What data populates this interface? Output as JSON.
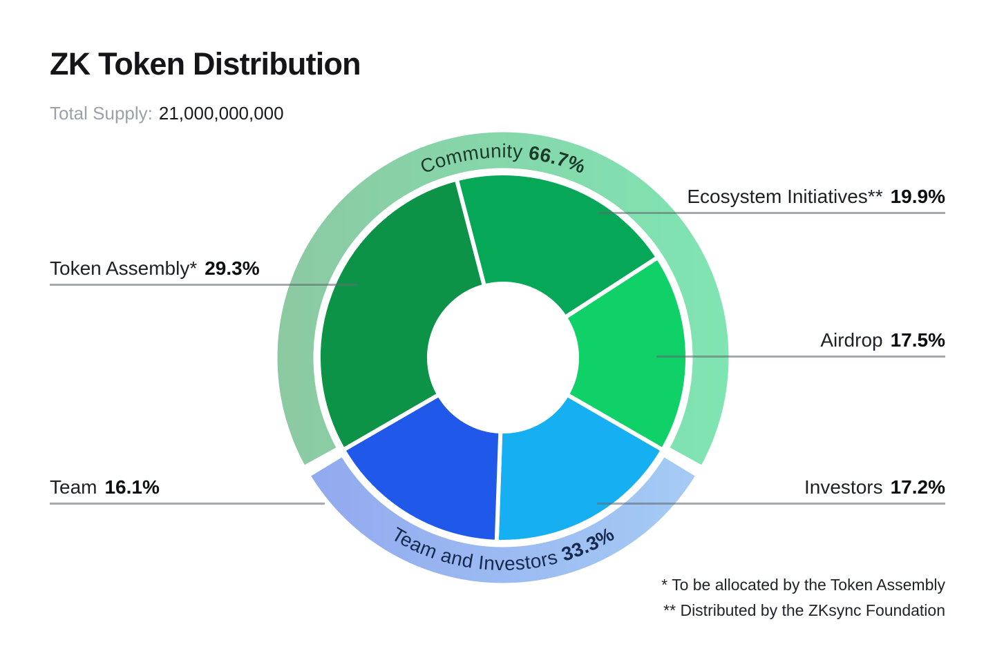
{
  "header": {
    "title": "ZK Token Distribution",
    "total_supply_label": "Total Supply:",
    "total_supply_value": "21,000,000,000"
  },
  "chart_data": {
    "type": "pie",
    "variant": "nested-donut",
    "title": "ZK Token Distribution",
    "total_supply": "21,000,000,000",
    "units": "%",
    "layout_hint": "outer category ring centered on 12 o'clock, inner segments clockwise from outer-ring boundary",
    "inner_segments": [
      {
        "label": "Token Assembly*",
        "value": 29.3,
        "color": "#0d9348"
      },
      {
        "label": "Ecosystem Initiatives**",
        "value": 19.9,
        "color": "#06a757"
      },
      {
        "label": "Airdrop",
        "value": 17.5,
        "color": "#0fd167"
      },
      {
        "label": "Investors",
        "value": 17.2,
        "color": "#16b0f2"
      },
      {
        "label": "Team",
        "value": 16.1,
        "color": "#2058e9"
      }
    ],
    "outer_segments": [
      {
        "label": "Community",
        "value": 66.7,
        "color_left": "#8cc9a2",
        "color_right": "#7fe5b2",
        "text_color": "#1c3a2b"
      },
      {
        "label": "Team and Investors",
        "value": 33.3,
        "color_left": "#90a6ee",
        "color_right": "#a7cef5",
        "text_color": "#152a4e"
      }
    ],
    "footnotes": [
      "* To be allocated by the Token Assembly",
      "** Distributed by the ZKsync Foundation"
    ]
  },
  "ring_labels": {
    "community": {
      "name": "Community",
      "value": "66.7%"
    },
    "team_investors": {
      "name": "Team and Investors",
      "value": "33.3%"
    }
  },
  "callouts": {
    "token_assembly": {
      "name": "Token Assembly*",
      "value": "29.3%"
    },
    "ecosystem": {
      "name": "Ecosystem Initiatives**",
      "value": "19.9%"
    },
    "airdrop": {
      "name": "Airdrop",
      "value": "17.5%"
    },
    "investors": {
      "name": "Investors",
      "value": "17.2%"
    },
    "team": {
      "name": "Team",
      "value": "16.1%"
    }
  },
  "footnotes": {
    "line1": "* To be allocated by the Token Assembly",
    "line2": "** Distributed by the ZKsync Foundation"
  }
}
